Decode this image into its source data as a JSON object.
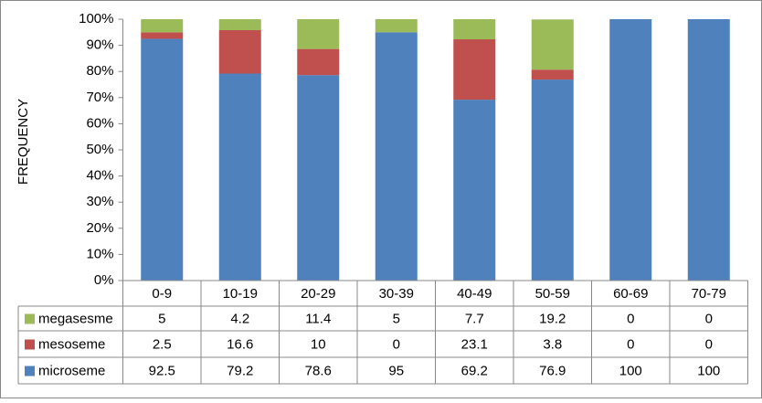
{
  "chart_data": {
    "type": "stacked_bar",
    "y_label": "FREQUENCY",
    "categories": [
      "0-9",
      "10-19",
      "20-29",
      "30-39",
      "40-49",
      "50-59",
      "60-69",
      "70-79"
    ],
    "series": [
      {
        "name": "megasesme",
        "color": "#9bbb59",
        "values": [
          5,
          4.2,
          11.4,
          5,
          7.7,
          19.2,
          0,
          0
        ]
      },
      {
        "name": "mesoseme",
        "color": "#c0504d",
        "values": [
          2.5,
          16.6,
          10,
          0,
          23.1,
          3.8,
          0,
          0
        ]
      },
      {
        "name": "microseme",
        "color": "#4f81bd",
        "values": [
          92.5,
          79.2,
          78.6,
          95,
          69.2,
          76.9,
          100,
          100
        ]
      }
    ],
    "ylim": [
      0,
      100
    ],
    "yticks": [
      {
        "value": 0,
        "label": "0%"
      },
      {
        "value": 10,
        "label": "10%"
      },
      {
        "value": 20,
        "label": "20%"
      },
      {
        "value": 30,
        "label": "30%"
      },
      {
        "value": 40,
        "label": "40%"
      },
      {
        "value": 50,
        "label": "50%"
      },
      {
        "value": 60,
        "label": "60%"
      },
      {
        "value": 70,
        "label": "70%"
      },
      {
        "value": 80,
        "label": "80%"
      },
      {
        "value": 90,
        "label": "90%"
      },
      {
        "value": 100,
        "label": "100%"
      }
    ],
    "grid": false,
    "data_table": true
  }
}
